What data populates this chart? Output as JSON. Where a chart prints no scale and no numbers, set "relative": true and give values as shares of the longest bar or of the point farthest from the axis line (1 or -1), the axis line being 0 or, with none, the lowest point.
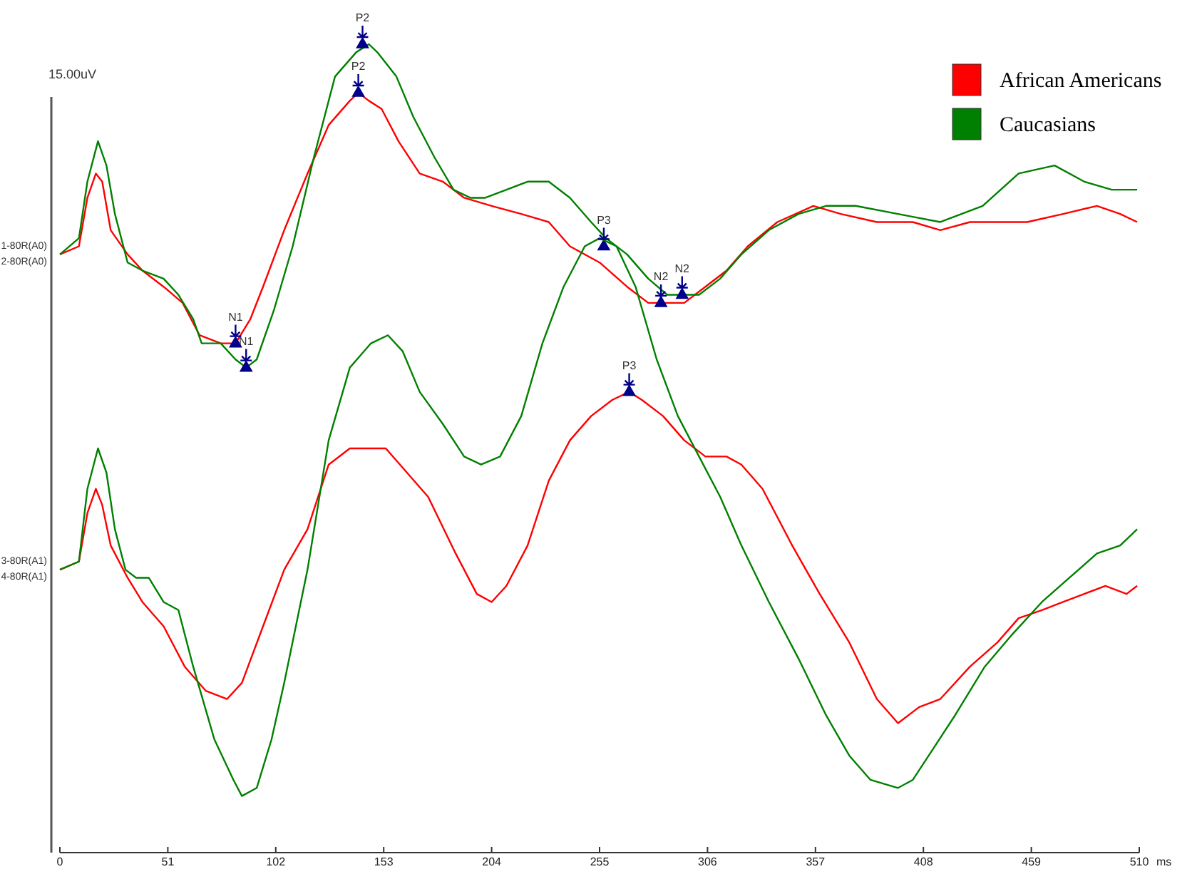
{
  "chart_data": {
    "type": "line",
    "relative": true,
    "xlabel": "ms",
    "ylabel": "15.00uV",
    "xlim": [
      0,
      510
    ],
    "xticks": [
      0,
      51,
      102,
      153,
      204,
      255,
      306,
      357,
      408,
      459,
      510
    ],
    "legend": "top right",
    "grid": false,
    "marker": "none",
    "line_style": "solid",
    "series": [
      {
        "name": "African Americans",
        "color": "#ff0000",
        "x": [
          0,
          9,
          13,
          17,
          20,
          24,
          32,
          39,
          49,
          58,
          66,
          76,
          83,
          90,
          96,
          106,
          117,
          127,
          137,
          141,
          146,
          152,
          160,
          170,
          181,
          191,
          204,
          218,
          231,
          241,
          255,
          268,
          278,
          284,
          295,
          305,
          315,
          325,
          339,
          356,
          369,
          386,
          403,
          416,
          430,
          443,
          457,
          474,
          490,
          501,
          509
        ],
        "values": [
          0.74,
          0.75,
          0.81,
          0.84,
          0.83,
          0.77,
          0.74,
          0.72,
          0.7,
          0.68,
          0.64,
          0.63,
          0.63,
          0.66,
          0.7,
          0.77,
          0.84,
          0.9,
          0.93,
          0.94,
          0.93,
          0.92,
          0.88,
          0.84,
          0.83,
          0.81,
          0.8,
          0.79,
          0.78,
          0.75,
          0.73,
          0.7,
          0.68,
          0.68,
          0.68,
          0.7,
          0.72,
          0.75,
          0.78,
          0.8,
          0.79,
          0.78,
          0.78,
          0.77,
          0.78,
          0.78,
          0.78,
          0.79,
          0.8,
          0.79,
          0.78
        ]
      },
      {
        "name": "Caucasians",
        "color": "#008000",
        "x": [
          0,
          9,
          13,
          18,
          22,
          26,
          32,
          39,
          49,
          56,
          63,
          67,
          76,
          83,
          88,
          93,
          101,
          110,
          120,
          130,
          140,
          146,
          150,
          159,
          167,
          177,
          186,
          194,
          201,
          211,
          221,
          231,
          241,
          251,
          258,
          268,
          278,
          287,
          295,
          302,
          312,
          322,
          335,
          349,
          362,
          376,
          396,
          416,
          436,
          453,
          470,
          484,
          497,
          509
        ],
        "values": [
          0.74,
          0.76,
          0.83,
          0.88,
          0.85,
          0.79,
          0.73,
          0.72,
          0.71,
          0.69,
          0.66,
          0.63,
          0.63,
          0.61,
          0.6,
          0.61,
          0.67,
          0.75,
          0.86,
          0.96,
          0.99,
          1,
          0.99,
          0.96,
          0.91,
          0.86,
          0.82,
          0.81,
          0.81,
          0.82,
          0.83,
          0.83,
          0.81,
          0.78,
          0.76,
          0.74,
          0.71,
          0.69,
          0.69,
          0.69,
          0.71,
          0.74,
          0.77,
          0.79,
          0.8,
          0.8,
          0.79,
          0.78,
          0.8,
          0.84,
          0.85,
          0.83,
          0.82,
          0.82
        ]
      },
      {
        "color": "#ff0000",
        "x": [
          0,
          9,
          13,
          17,
          20,
          24,
          32,
          39,
          49,
          59,
          69,
          79,
          86,
          96,
          106,
          117,
          127,
          137,
          146,
          154,
          164,
          174,
          187,
          197,
          204,
          211,
          221,
          231,
          241,
          251,
          261,
          269,
          275,
          285,
          295,
          305,
          315,
          322,
          332,
          346,
          359,
          373,
          386,
          396,
          406,
          416,
          430,
          443,
          453,
          464,
          474,
          484,
          494,
          504,
          509
        ],
        "values": [
          0.35,
          0.36,
          0.42,
          0.45,
          0.43,
          0.38,
          0.34,
          0.31,
          0.28,
          0.23,
          0.2,
          0.19,
          0.21,
          0.28,
          0.35,
          0.4,
          0.48,
          0.5,
          0.5,
          0.5,
          0.47,
          0.44,
          0.37,
          0.32,
          0.31,
          0.33,
          0.38,
          0.46,
          0.51,
          0.54,
          0.56,
          0.57,
          0.56,
          0.54,
          0.51,
          0.49,
          0.49,
          0.48,
          0.45,
          0.38,
          0.32,
          0.26,
          0.19,
          0.16,
          0.18,
          0.19,
          0.23,
          0.26,
          0.29,
          0.3,
          0.31,
          0.32,
          0.33,
          0.32,
          0.33
        ]
      },
      {
        "type": "scatter",
        "marker": "triangle",
        "color": "#00008b",
        "x": [
          143,
          141,
          83,
          88,
          257,
          284,
          294,
          269
        ],
        "values": [
          1,
          0.94,
          0.63,
          0.6,
          0.75,
          0.68,
          0.69,
          0.57
        ]
      },
      {
        "color": "#008000",
        "x": [
          0,
          9,
          13,
          18,
          22,
          26,
          31,
          36,
          42,
          49,
          56,
          63,
          73,
          82,
          86,
          93,
          100,
          106,
          117,
          127,
          137,
          147,
          155,
          162,
          170,
          181,
          191,
          199,
          208,
          218,
          228,
          238,
          248,
          255,
          263,
          272,
          282,
          292,
          302,
          312,
          322,
          335,
          349,
          362,
          373,
          383,
          396,
          403,
          413,
          423,
          437,
          450,
          464,
          477,
          490,
          501,
          509
        ],
        "values": [
          0.35,
          0.36,
          0.45,
          0.5,
          0.47,
          0.4,
          0.35,
          0.34,
          0.34,
          0.31,
          0.3,
          0.23,
          0.14,
          0.09,
          0.07,
          0.08,
          0.14,
          0.21,
          0.35,
          0.51,
          0.6,
          0.63,
          0.64,
          0.62,
          0.57,
          0.53,
          0.49,
          0.48,
          0.49,
          0.54,
          0.63,
          0.7,
          0.75,
          0.76,
          0.75,
          0.7,
          0.61,
          0.54,
          0.49,
          0.44,
          0.38,
          0.31,
          0.24,
          0.17,
          0.12,
          0.09,
          0.08,
          0.09,
          0.13,
          0.17,
          0.23,
          0.27,
          0.31,
          0.34,
          0.37,
          0.38,
          0.4
        ]
      }
    ],
    "annotations": [
      {
        "text": "1-80R(A0)",
        "x": 0,
        "y": 0.74
      },
      {
        "text": "2-80R(A0)",
        "x": 0,
        "y": 0.74
      },
      {
        "text": "3-80R(A1)",
        "x": 0,
        "y": 0.35
      },
      {
        "text": "4-80R(A1)",
        "x": 0,
        "y": 0.35
      },
      {
        "text": "P2",
        "x": 143,
        "y": 1
      },
      {
        "text": "P2",
        "x": 141,
        "y": 0.94
      },
      {
        "text": "N1",
        "x": 83,
        "y": 0.63
      },
      {
        "text": "N1",
        "x": 88,
        "y": 0.6
      },
      {
        "text": "P3",
        "x": 257,
        "y": 0.75
      },
      {
        "text": "N2",
        "x": 284,
        "y": 0.68
      },
      {
        "text": "N2",
        "x": 294,
        "y": 0.69
      },
      {
        "text": "P3",
        "x": 269,
        "y": 0.57
      }
    ]
  }
}
